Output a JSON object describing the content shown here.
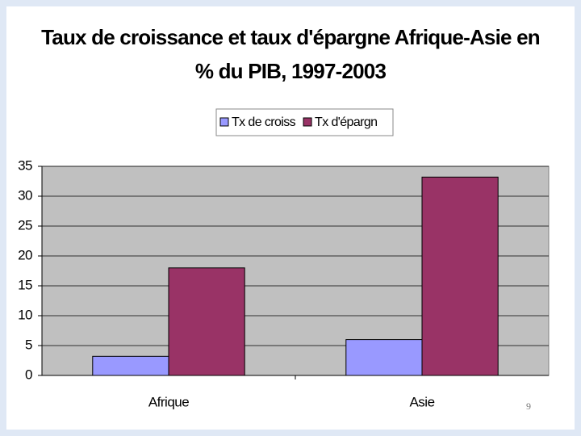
{
  "chart_data": {
    "type": "bar",
    "title": [
      "Taux de croissance et taux d'épargne Afrique-Asie en",
      "% du PIB, 1997-2003"
    ],
    "categories": [
      "Afrique",
      "Asie"
    ],
    "series": [
      {
        "name": "Tx de croiss",
        "color": "#9999ff",
        "values": [
          3.2,
          6
        ]
      },
      {
        "name": "Tx d'épargn",
        "color": "#993366",
        "values": [
          18,
          33.2
        ]
      }
    ],
    "ylim": [
      0,
      35
    ],
    "yticks": [
      0,
      5,
      10,
      15,
      20,
      25,
      30,
      35
    ],
    "grid": true,
    "plot_background": "#c0c0c0",
    "legend": "top"
  },
  "slide_number": 9
}
